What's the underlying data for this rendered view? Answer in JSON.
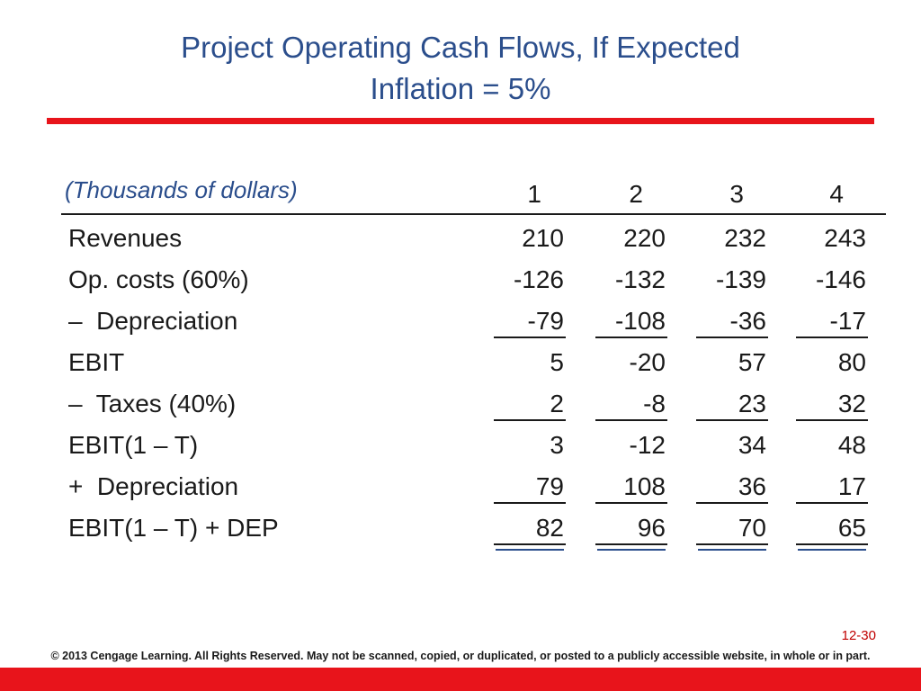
{
  "header": {
    "title": [
      "Project Operating Cash Flows, If Expected",
      "Inflation = 5%"
    ]
  },
  "table": {
    "unit_note": "(Thousands of dollars)",
    "columns": [
      "1",
      "2",
      "3",
      "4"
    ],
    "rows": [
      {
        "label": "Revenues",
        "values": [
          210,
          220,
          232,
          243
        ]
      },
      {
        "label": "Op. costs (60%)",
        "values": [
          -126,
          -132,
          -139,
          -146
        ]
      },
      {
        "label": "–  Depreciation",
        "values": [
          -79,
          -108,
          -36,
          -17
        ]
      },
      {
        "label": "EBIT",
        "values": [
          5,
          -20,
          57,
          80
        ]
      },
      {
        "label": "–  Taxes (40%)",
        "values": [
          2,
          -8,
          23,
          32
        ]
      },
      {
        "label": "EBIT(1 – T)",
        "values": [
          3,
          -12,
          34,
          48
        ]
      },
      {
        "label": "+  Depreciation",
        "values": [
          79,
          108,
          36,
          17
        ]
      },
      {
        "label": "EBIT(1 – T) + DEP",
        "values": [
          82,
          96,
          70,
          65
        ]
      }
    ]
  },
  "footer": {
    "page_number": "12-30",
    "copyright": "© 2013 Cengage Learning. All Rights Reserved. May not be scanned, copied, or duplicated, or posted to a publicly accessible website, in whole or in part."
  }
}
